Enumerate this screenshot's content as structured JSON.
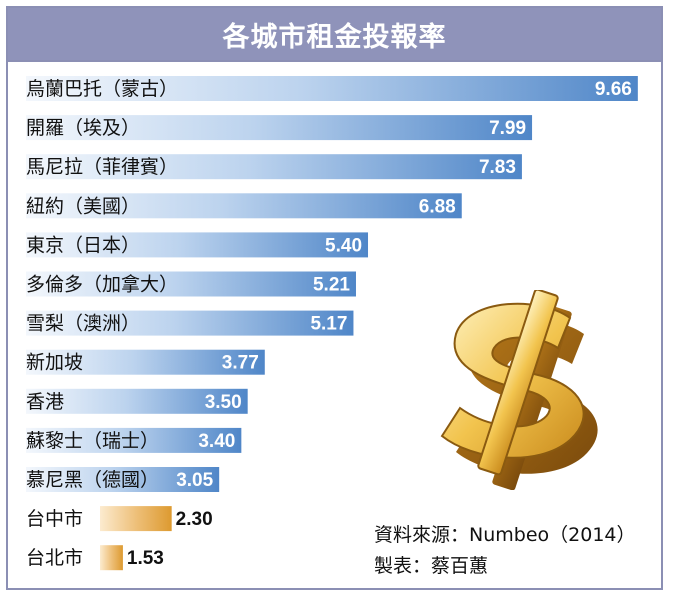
{
  "chart_data": {
    "type": "bar",
    "orientation": "horizontal",
    "title": "各城市租金投報率",
    "categories": [
      "烏蘭巴托（蒙古）",
      "開羅（埃及）",
      "馬尼拉（菲律賓）",
      "紐約（美國）",
      "東京（日本）",
      "多倫多（加拿大）",
      "雪梨（澳洲）",
      "新加坡",
      "香港",
      "蘇黎士（瑞士）",
      "慕尼黑（德國）",
      "台中市",
      "台北市"
    ],
    "values": [
      9.66,
      7.99,
      7.83,
      6.88,
      5.4,
      5.21,
      5.17,
      3.77,
      3.5,
      3.4,
      3.05,
      2.3,
      1.53
    ],
    "value_labels": [
      "9.66",
      "7.99",
      "7.83",
      "6.88",
      "5.40",
      "5.21",
      "5.17",
      "3.77",
      "3.50",
      "3.40",
      "3.05",
      "2.30",
      "1.53"
    ],
    "highlight": [
      "台中市",
      "台北市"
    ],
    "colors": {
      "bar": "#4f86c8",
      "bar_light": "#eaf1fa",
      "highlight_bar": "#e3a23a",
      "highlight_light": "#fbe7c4"
    }
  },
  "source": {
    "line1": "資料來源：Numbeo（2014）",
    "line2": "製表：蔡百蕙"
  },
  "decoration": {
    "icon": "dollar-sign-icon",
    "color": "#e0a93c"
  }
}
